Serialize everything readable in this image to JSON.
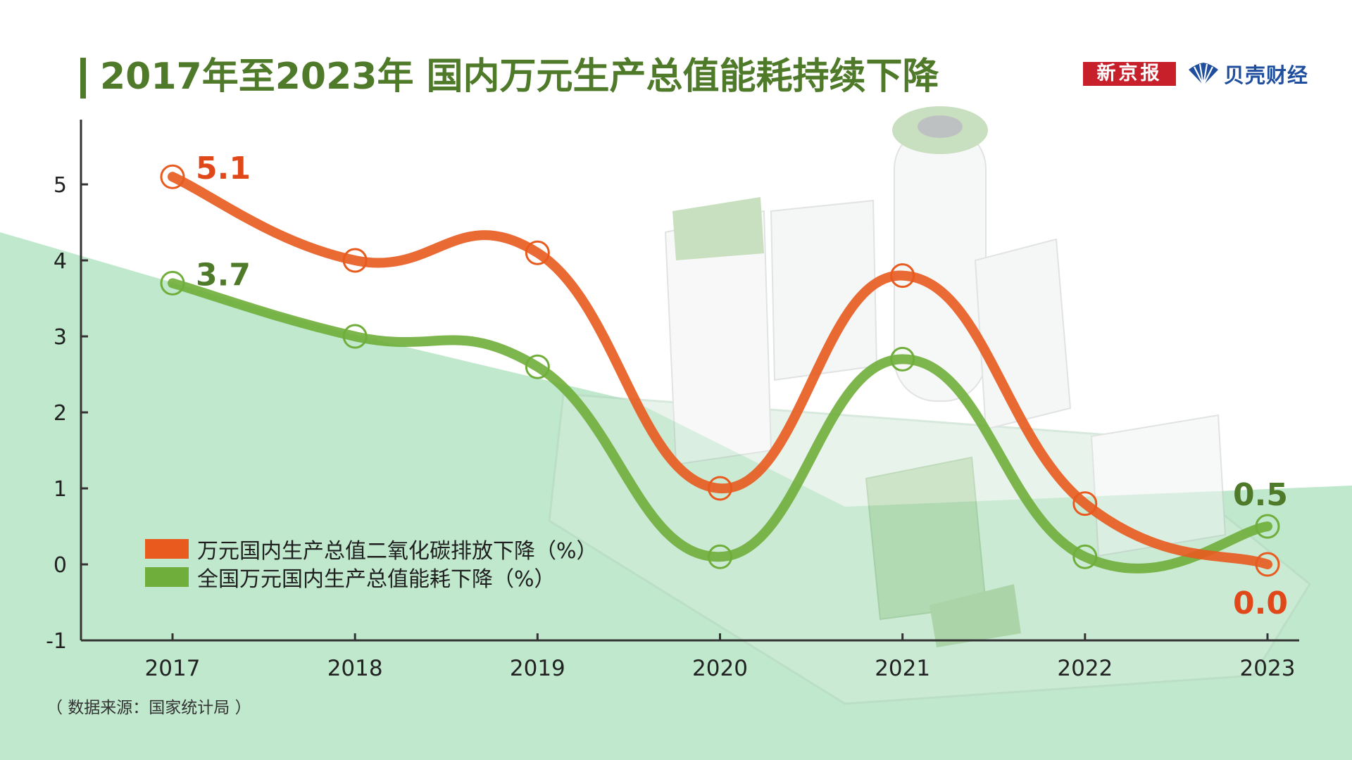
{
  "header": {
    "title": "2017年至2023年 国内万元生产总值能耗持续下降",
    "logo_xinjingbao": "新京报",
    "logo_beike": "贝壳财经"
  },
  "source_note": "（ 数据来源：国家统计局 ）",
  "colors": {
    "title": "#4f7a2a",
    "co2_series": "#e85a1e",
    "energy_series": "#6fae3a",
    "background_green": "#bfe8cc"
  },
  "chart_data": {
    "type": "line",
    "x": [
      "2017",
      "2018",
      "2019",
      "2020",
      "2021",
      "2022",
      "2023"
    ],
    "ylim": [
      -1,
      5.8
    ],
    "yticks": [
      "-1",
      "0",
      "1",
      "2",
      "3",
      "4",
      "5"
    ],
    "series": [
      {
        "name": "万元国内生产总值二氧化碳排放下降（%）",
        "values": [
          5.1,
          4.0,
          4.1,
          1.0,
          3.8,
          0.8,
          0.0
        ],
        "color": "#e85a1e",
        "labels": {
          "2017": "5.1",
          "2023": "0.0"
        }
      },
      {
        "name": "全国万元国内生产总值能耗下降（%）",
        "values": [
          3.7,
          3.0,
          2.6,
          0.1,
          2.7,
          0.1,
          0.5
        ],
        "color": "#6fae3a",
        "labels": {
          "2017": "3.7",
          "2023": "0.5"
        }
      }
    ],
    "legend": "bottom-left",
    "grid": false
  }
}
